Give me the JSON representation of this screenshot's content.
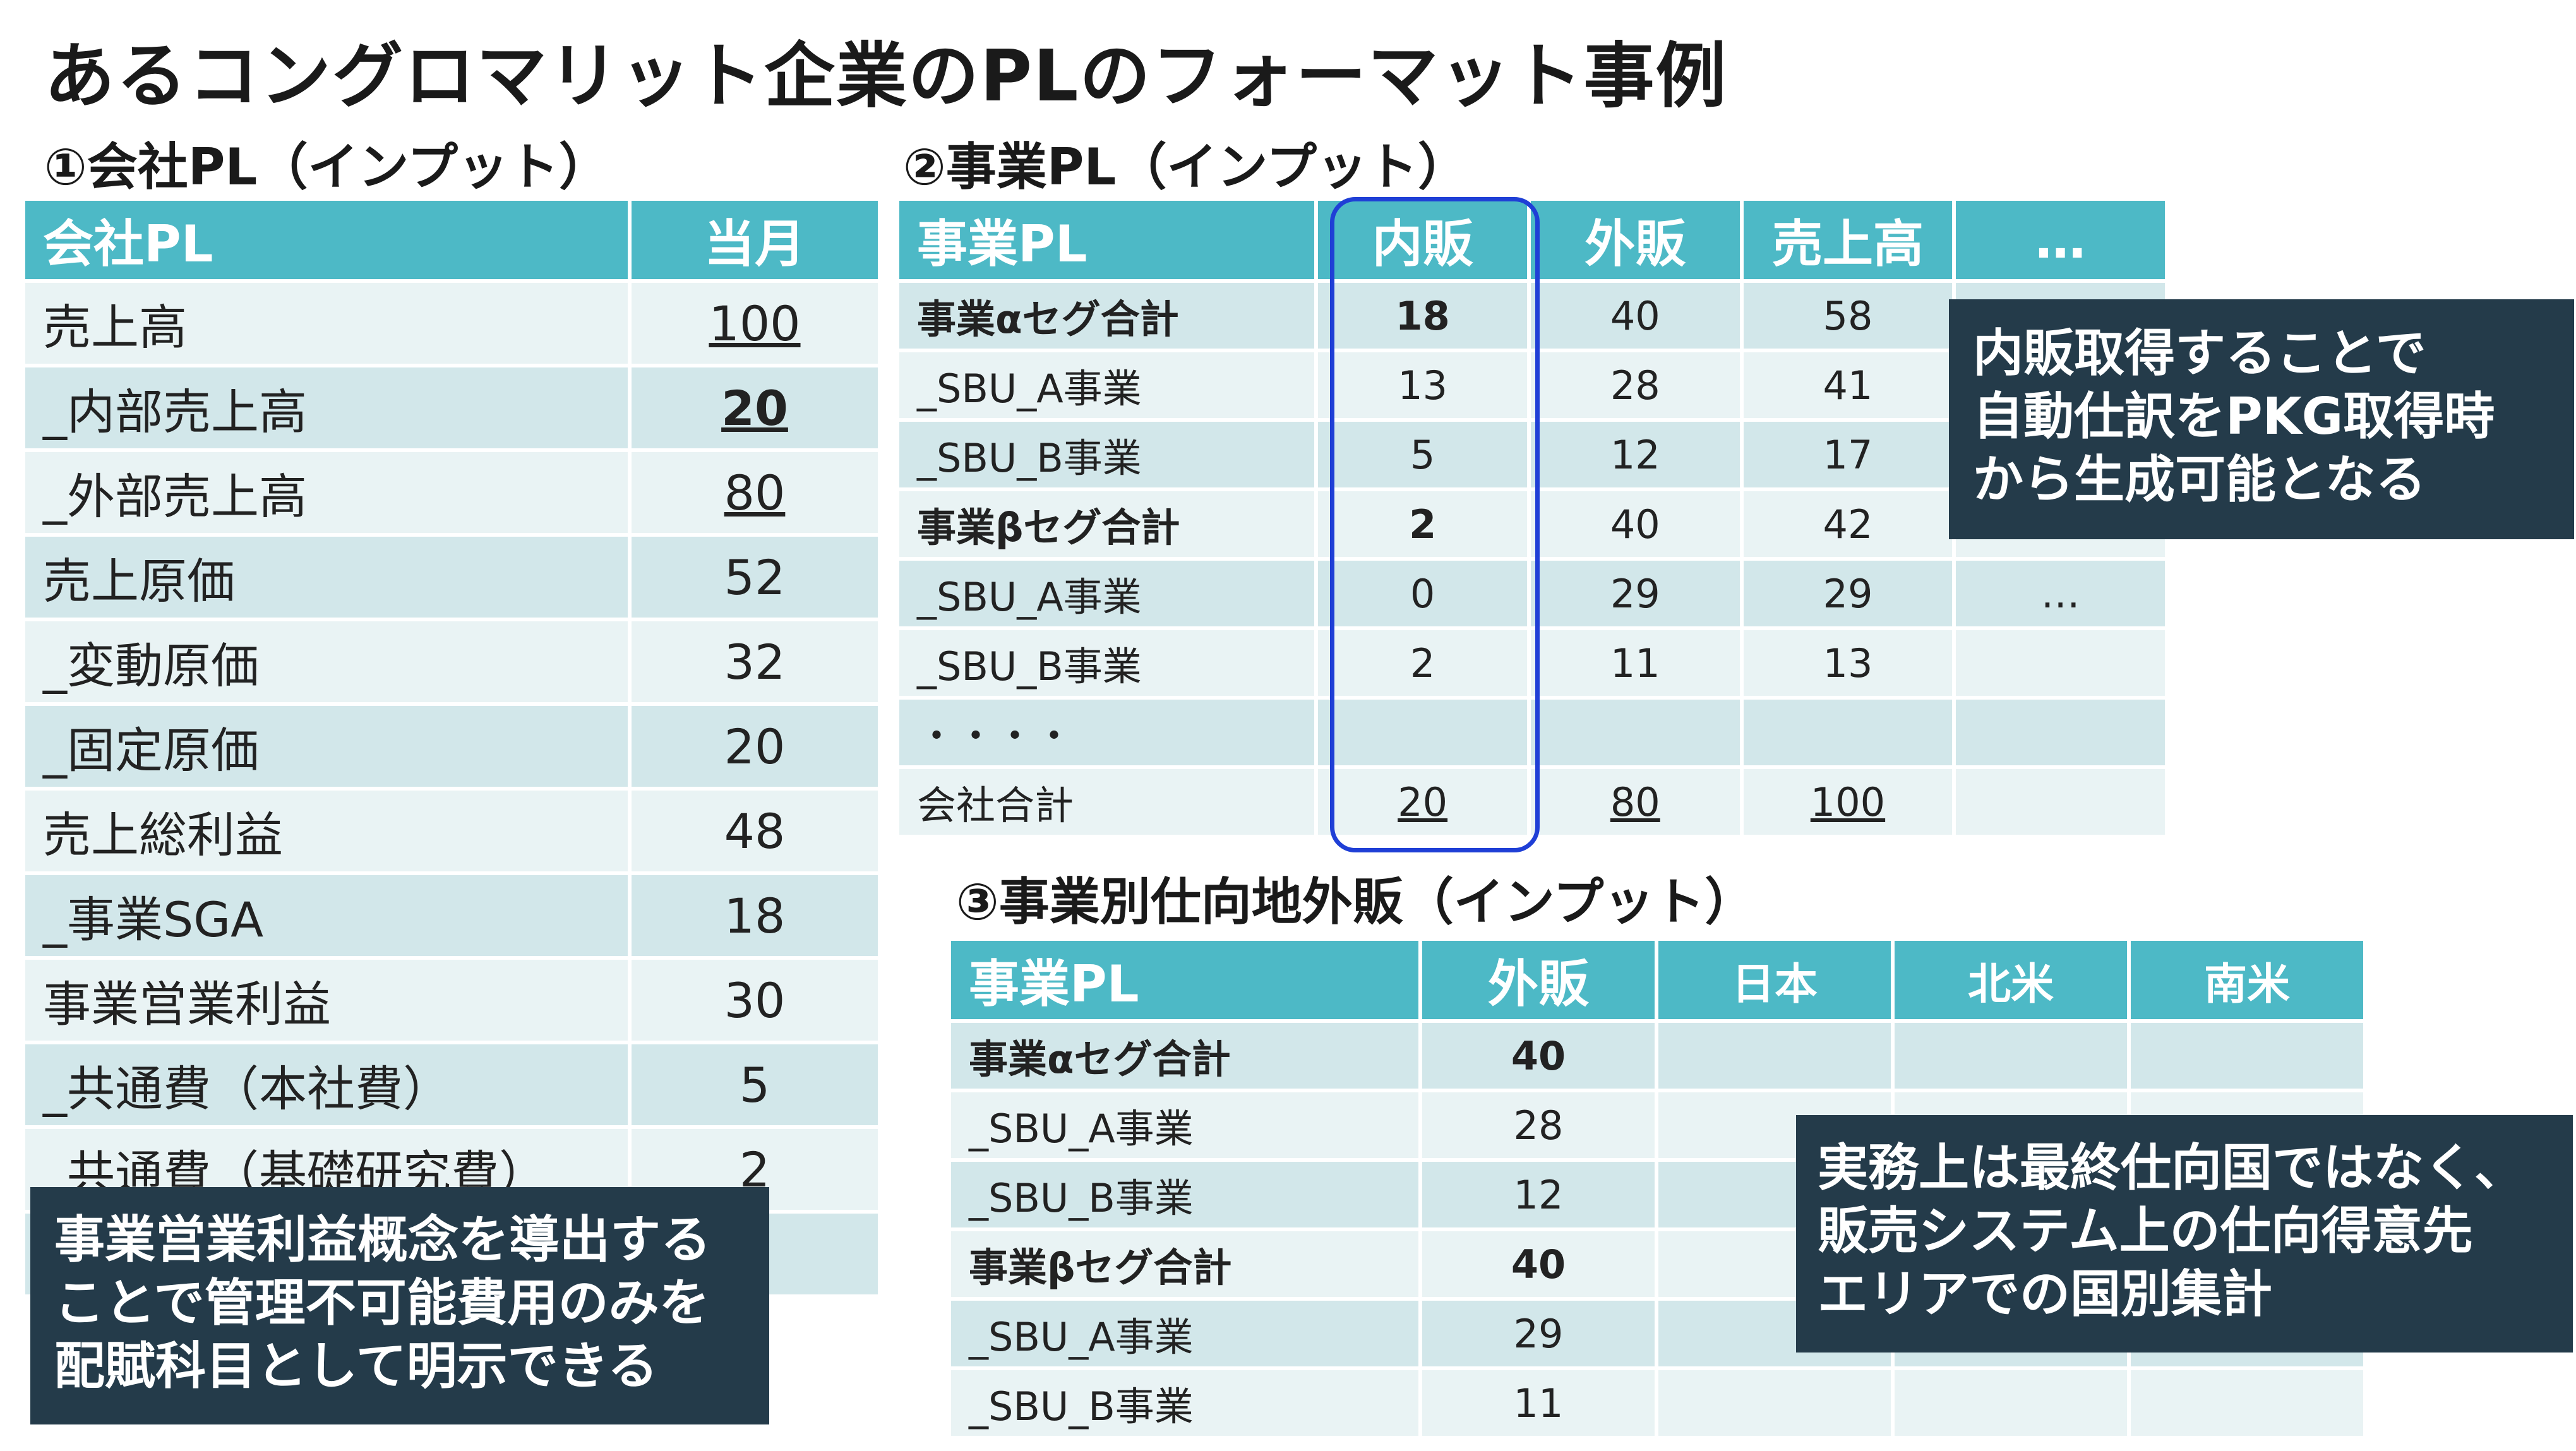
{
  "title": "あるコングロマリット企業のPLのフォーマット事例",
  "section1": {
    "heading": "①会社PL（インプット）",
    "headers": [
      "会社PL",
      "当月"
    ],
    "rows": [
      {
        "label": "売上高",
        "value": "100"
      },
      {
        "label": "_内部売上高",
        "value": "20"
      },
      {
        "label": "_外部売上高",
        "value": "80"
      },
      {
        "label": "売上原価",
        "value": "52"
      },
      {
        "label": "_変動原価",
        "value": "32"
      },
      {
        "label": "_固定原価",
        "value": "20"
      },
      {
        "label": "売上総利益",
        "value": "48"
      },
      {
        "label": "_事業SGA",
        "value": "18"
      },
      {
        "label": "事業営業利益",
        "value": "30"
      },
      {
        "label": "_共通費（本社費）",
        "value": "5"
      },
      {
        "label": "_共通費（基礎研究費）",
        "value": "2"
      },
      {
        "label": "",
        "value": ""
      }
    ]
  },
  "section2": {
    "heading": "②事業PL（インプット）",
    "headers": [
      "事業PL",
      "内販",
      "外販",
      "売上高",
      "…"
    ],
    "rows": [
      {
        "label": "事業αセグ合計",
        "naihan": "18",
        "gaihan": "40",
        "uriage": "58",
        "extra": ""
      },
      {
        "label": "_SBU_A事業",
        "naihan": "13",
        "gaihan": "28",
        "uriage": "41",
        "extra": ""
      },
      {
        "label": "_SBU_B事業",
        "naihan": "5",
        "gaihan": "12",
        "uriage": "17",
        "extra": ""
      },
      {
        "label": "事業βセグ合計",
        "naihan": "2",
        "gaihan": "40",
        "uriage": "42",
        "extra": ""
      },
      {
        "label": "_SBU_A事業",
        "naihan": "0",
        "gaihan": "29",
        "uriage": "29",
        "extra": "…"
      },
      {
        "label": "_SBU_B事業",
        "naihan": "2",
        "gaihan": "11",
        "uriage": "13",
        "extra": ""
      },
      {
        "label": "・・・・",
        "naihan": "",
        "gaihan": "",
        "uriage": "",
        "extra": ""
      },
      {
        "label": "会社合計",
        "naihan": "20",
        "gaihan": "80",
        "uriage": "100",
        "extra": ""
      }
    ]
  },
  "section3": {
    "heading": "③事業別仕向地外販（インプット）",
    "headers": [
      "事業PL",
      "外販",
      "日本",
      "北米",
      "南米"
    ],
    "rows": [
      {
        "label": "事業αセグ合計",
        "gaihan": "40"
      },
      {
        "label": "_SBU_A事業",
        "gaihan": "28"
      },
      {
        "label": "_SBU_B事業",
        "gaihan": "12"
      },
      {
        "label": "事業βセグ合計",
        "gaihan": "40"
      },
      {
        "label": "_SBU_A事業",
        "gaihan": "29"
      },
      {
        "label": "_SBU_B事業",
        "gaihan": "11"
      }
    ]
  },
  "callouts": {
    "naihan": [
      "内販取得することで",
      "自動仕訳をPKG取得時",
      "から生成可能となる"
    ],
    "destination": [
      "実務上は最終仕向国ではなく、",
      "販売システム上の仕向得意先",
      "エリアでの国別集計"
    ],
    "operating_profit": [
      "事業営業利益概念を導出する",
      "ことで管理不可能費用のみを",
      "配賦科目として明示できる"
    ]
  },
  "colors": {
    "header_teal": "#4db9c6",
    "row_dark": "#d2e7ea",
    "row_light": "#e9f3f4",
    "callout_navy": "#243b4a",
    "highlight_blue": "#1f3fd6"
  }
}
